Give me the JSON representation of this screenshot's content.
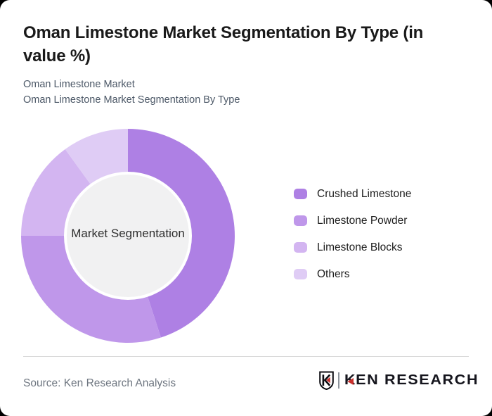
{
  "card": {
    "title": "Oman Limestone Market Segmentation By Type (in value %)",
    "subtitle_line1": "Oman Limestone Market",
    "subtitle_line2": "Oman Limestone Market Segmentation By Type",
    "source": "Source: Ken Research Analysis"
  },
  "logo": {
    "badge_letter": "K",
    "wordmark_first_letter": "K",
    "wordmark_rest": "EN RESEARCH",
    "brand_red": "#c92f2c",
    "brand_dark": "#15151d"
  },
  "chart_data": {
    "type": "pie",
    "subtype": "donut",
    "title": "Oman Limestone Market Segmentation By Type (in value %)",
    "center_label": "Market Segmentation",
    "categories": [
      "Crushed Limestone",
      "Limestone Powder",
      "Limestone Blocks",
      "Others"
    ],
    "values": [
      45,
      30,
      15,
      10
    ],
    "unit": "percent of market value",
    "colors": [
      "#ae80e4",
      "#bf97ea",
      "#d3b5f1",
      "#dfccf5"
    ],
    "start_angle_deg": 0,
    "direction": "clockwise",
    "legend_position": "right",
    "hole_ring_color": "#ffffff",
    "hole_fill_color": "#f1f1f2",
    "outer_radius_px": 152,
    "hole_radius_px": 91,
    "inner_circle_radius_px": 87
  }
}
